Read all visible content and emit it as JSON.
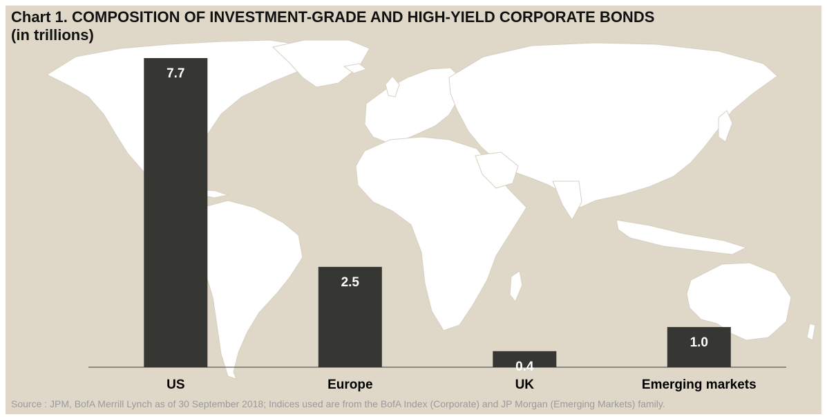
{
  "title_line1": "Chart 1. COMPOSITION OF INVESTMENT-GRADE AND HIGH-YIELD CORPORATE BONDS",
  "title_line2": "(in trillions)",
  "source": "Source : JPM, BofA Merrill Lynch as of 30 September 2018; Indices used are from the BofA Index (Corporate) and JP Morgan (Emerging Markets) family.",
  "colors": {
    "background": "#dfd8c8",
    "map": "#ffffff",
    "bar": "#363732",
    "bar_label": "#ffffff",
    "axis_label": "#000000"
  },
  "chart_data": {
    "type": "bar",
    "categories": [
      "US",
      "Europe",
      "UK",
      "Emerging markets"
    ],
    "values": [
      7.7,
      2.5,
      0.4,
      1.0
    ],
    "value_labels": [
      "7.7",
      "2.5",
      "0.4",
      "1.0"
    ],
    "title": "Chart 1. COMPOSITION OF INVESTMENT-GRADE AND HIGH-YIELD CORPORATE BONDS",
    "subtitle": "(in trillions)",
    "xlabel": "",
    "ylabel": "",
    "ylim": [
      0,
      7.7
    ],
    "grid": false,
    "legend": "none"
  }
}
